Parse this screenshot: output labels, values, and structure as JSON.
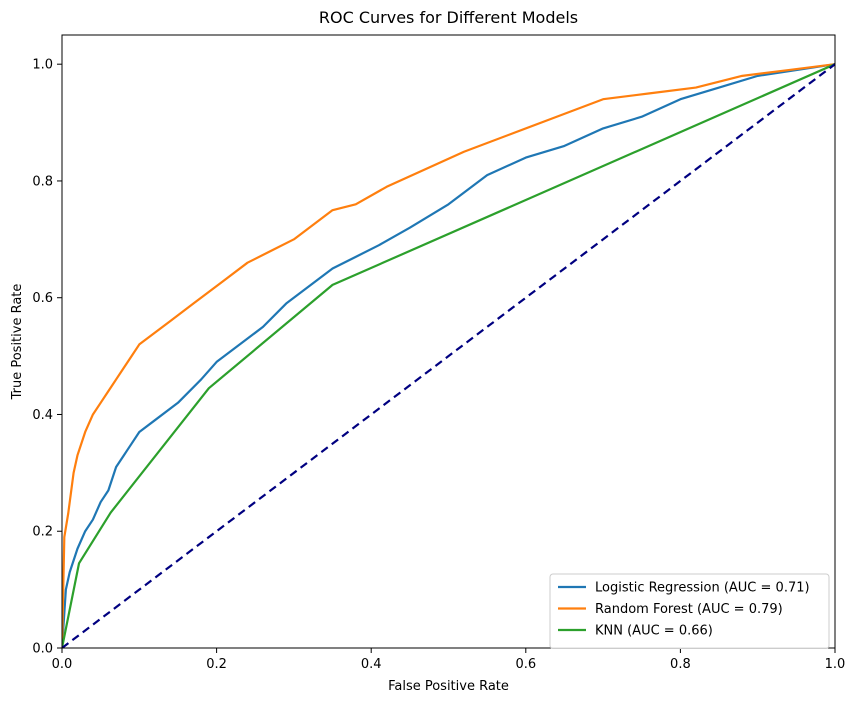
{
  "chart_data": {
    "type": "line",
    "title": "ROC Curves for Different Models",
    "xlabel": "False Positive Rate",
    "ylabel": "True Positive Rate",
    "xlim": [
      0,
      1
    ],
    "ylim": [
      0,
      1.05
    ],
    "xticks": [
      0.0,
      0.2,
      0.4,
      0.6,
      0.8,
      1.0
    ],
    "yticks": [
      0.0,
      0.2,
      0.4,
      0.6,
      0.8,
      1.0
    ],
    "tick_labels_x": [
      "0.0",
      "0.2",
      "0.4",
      "0.6",
      "0.8",
      "1.0"
    ],
    "tick_labels_y": [
      "0.0",
      "0.2",
      "0.4",
      "0.6",
      "0.8",
      "1.0"
    ],
    "grid": false,
    "legend_position": "bottom-right",
    "series": [
      {
        "name": "Logistic Regression (AUC = 0.71)",
        "color": "#1f77b4",
        "style": "solid",
        "x": [
          0.0,
          0.005,
          0.01,
          0.02,
          0.03,
          0.04,
          0.05,
          0.06,
          0.07,
          0.08,
          0.09,
          0.1,
          0.12,
          0.15,
          0.18,
          0.2,
          0.23,
          0.26,
          0.29,
          0.32,
          0.35,
          0.38,
          0.41,
          0.45,
          0.5,
          0.55,
          0.6,
          0.65,
          0.7,
          0.75,
          0.8,
          0.85,
          0.9,
          0.95,
          1.0
        ],
        "y": [
          0.0,
          0.1,
          0.13,
          0.17,
          0.2,
          0.22,
          0.25,
          0.27,
          0.31,
          0.33,
          0.35,
          0.37,
          0.39,
          0.42,
          0.46,
          0.49,
          0.52,
          0.55,
          0.59,
          0.62,
          0.65,
          0.67,
          0.69,
          0.72,
          0.76,
          0.81,
          0.84,
          0.86,
          0.89,
          0.91,
          0.94,
          0.96,
          0.98,
          0.99,
          1.0
        ]
      },
      {
        "name": "Random Forest (AUC = 0.79)",
        "color": "#ff7f0e",
        "style": "solid",
        "x": [
          0.0,
          0.003,
          0.008,
          0.015,
          0.02,
          0.03,
          0.04,
          0.05,
          0.06,
          0.07,
          0.08,
          0.09,
          0.1,
          0.12,
          0.14,
          0.17,
          0.19,
          0.21,
          0.24,
          0.27,
          0.3,
          0.35,
          0.38,
          0.42,
          0.47,
          0.52,
          0.58,
          0.64,
          0.7,
          0.76,
          0.82,
          0.88,
          0.94,
          1.0
        ],
        "y": [
          0.0,
          0.19,
          0.23,
          0.3,
          0.33,
          0.37,
          0.4,
          0.42,
          0.44,
          0.46,
          0.48,
          0.5,
          0.52,
          0.54,
          0.56,
          0.59,
          0.61,
          0.63,
          0.66,
          0.68,
          0.7,
          0.75,
          0.76,
          0.79,
          0.82,
          0.85,
          0.88,
          0.91,
          0.94,
          0.95,
          0.96,
          0.98,
          0.99,
          1.0
        ]
      },
      {
        "name": "KNN (AUC = 0.66)",
        "color": "#2ca02c",
        "style": "solid",
        "x": [
          0.0,
          0.022,
          0.063,
          0.19,
          0.35,
          1.0
        ],
        "y": [
          0.0,
          0.145,
          0.232,
          0.445,
          0.622,
          1.0
        ]
      },
      {
        "name": "",
        "color": "#000080",
        "style": "dashed",
        "x": [
          0.0,
          1.0
        ],
        "y": [
          0.0,
          1.0
        ]
      }
    ]
  }
}
